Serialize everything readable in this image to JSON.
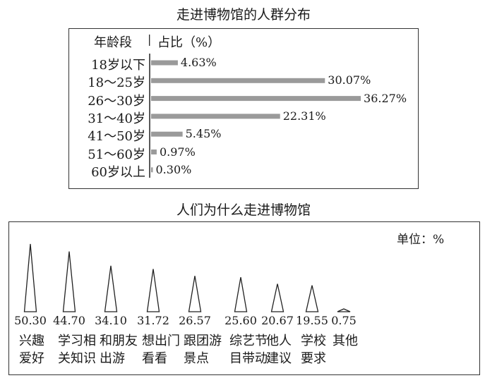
{
  "chart_data": [
    {
      "type": "bar",
      "orientation": "horizontal",
      "title": "走进博物馆的人群分布",
      "header_category": "年龄段",
      "header_value": "占比（%）",
      "categories": [
        "18岁以下",
        "18～25岁",
        "26～30岁",
        "31～40岁",
        "41～50岁",
        "51～60岁",
        "60岁以上"
      ],
      "values": [
        4.63,
        30.07,
        36.27,
        22.31,
        5.45,
        0.97,
        0.3
      ],
      "labels": [
        "4.63%",
        "30.07%",
        "36.27%",
        "22.31%",
        "5.45%",
        "0.97%",
        "0.30%"
      ],
      "bar_color": "#9a9a9a"
    },
    {
      "type": "bar",
      "mark": "triangle",
      "title": "人们为什么走进博物馆",
      "unit": "单位：%",
      "categories": [
        [
          "兴趣",
          "爱好"
        ],
        [
          "学习相",
          "关知识"
        ],
        [
          "和朋友",
          "出游"
        ],
        [
          "想出门",
          "看看"
        ],
        [
          "跟团游",
          "景点"
        ],
        [
          "综艺节",
          "目带动"
        ],
        [
          "他人",
          "建议"
        ],
        [
          "学校",
          "要求"
        ],
        [
          "其他",
          ""
        ]
      ],
      "values": [
        50.3,
        44.7,
        34.1,
        31.72,
        26.57,
        25.6,
        20.67,
        19.55,
        0.75
      ],
      "labels": [
        "50.30",
        "44.70",
        "34.10",
        "31.72",
        "26.57",
        "25.60",
        "20.67",
        "19.55",
        "0.75"
      ]
    }
  ]
}
